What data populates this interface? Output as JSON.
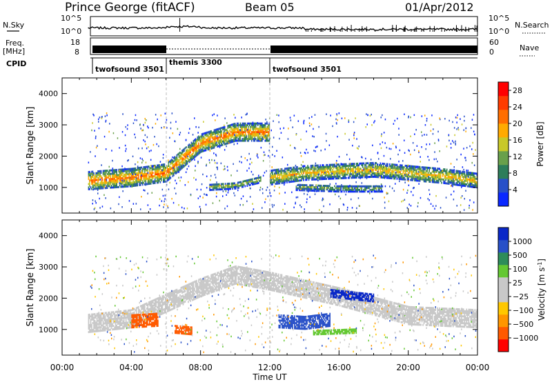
{
  "header": {
    "title": "Prince George (fitACF)",
    "beam": "Beam 05",
    "date": "01/Apr/2012"
  },
  "top_panels": {
    "nsky_label": "N.Sky",
    "nsearch_label": "N.Search",
    "nsky_ticks": [
      "10^5",
      "10^0"
    ],
    "nsearch_ticks": [
      "10^5",
      "10^0"
    ],
    "freq_label_1": "Freq.",
    "freq_label_2": "[MHz]",
    "freq_ticks": [
      "18",
      "8"
    ],
    "nave_label": "Nave",
    "nave_ticks": [
      "60",
      "0"
    ],
    "cpid_label": "CPID",
    "cpid_segments": [
      {
        "name": "twofsound 3501",
        "start_hr": 1.5,
        "end_hr": 6.0
      },
      {
        "name": "themis 3300",
        "start_hr": 6.0,
        "end_hr": 12.0
      },
      {
        "name": "twofsound 3501",
        "start_hr": 12.0,
        "end_hr": 24.0
      }
    ]
  },
  "colors": {
    "power_scale": [
      "#0a28ff",
      "#2850c8",
      "#2d7d5a",
      "#69a04b",
      "#c8c828",
      "#ffaa00",
      "#ff6e00",
      "#ff3c00",
      "#ff0000"
    ],
    "velocity_scale": [
      "#ff0000",
      "#ff5a00",
      "#ff9600",
      "#ffc800",
      "#c8c8c8",
      "#c8c8c8",
      "#64c832",
      "#2d8c5a",
      "#2850c8",
      "#0a28c8"
    ]
  },
  "chart_data": [
    {
      "type": "heatmap",
      "panel": "power",
      "xlabel": "",
      "ylabel": "Slant Range [km]",
      "xlim": [
        0,
        24
      ],
      "ylim": [
        180,
        4500
      ],
      "yticks": [
        "1000",
        "2000",
        "3000",
        "4000"
      ],
      "colorbar": {
        "label": "Power [dB]",
        "ticks": [
          "28",
          "24",
          "20",
          "16",
          "12",
          "8",
          "4"
        ],
        "range": [
          0,
          30
        ]
      },
      "features": [
        {
          "x": [
            1.5,
            4,
            6,
            8,
            10,
            12
          ],
          "y": [
            1250,
            1350,
            1500,
            2450,
            2800,
            2800
          ],
          "width_km": 550,
          "value_db": 22
        },
        {
          "x": [
            8.5,
            10,
            11.5
          ],
          "y": [
            1050,
            1100,
            1300
          ],
          "width_km": 200,
          "value_db": 14
        },
        {
          "x": [
            12,
            14,
            18,
            22,
            24
          ],
          "y": [
            1350,
            1500,
            1600,
            1400,
            1250
          ],
          "width_km": 450,
          "value_db": 18
        },
        {
          "x": [
            13.5,
            16,
            18.5
          ],
          "y": [
            1050,
            1000,
            1000
          ],
          "width_km": 200,
          "value_db": 12
        }
      ]
    },
    {
      "type": "heatmap",
      "panel": "velocity",
      "xlabel": "Time UT",
      "ylabel": "Slant Range [km]",
      "xlim": [
        0,
        24
      ],
      "ylim": [
        180,
        4500
      ],
      "yticks": [
        "1000",
        "2000",
        "3000",
        "4000"
      ],
      "xticks": [
        "00:00",
        "04:00",
        "08:00",
        "12:00",
        "16:00",
        "20:00",
        "00:00"
      ],
      "colorbar": {
        "label": "Velocity [m s",
        "label_superscript": "-1",
        "label_close": "]",
        "ticks": [
          "1000",
          "500",
          "100",
          "25",
          "−25",
          "−100",
          "−500",
          "−1000"
        ]
      },
      "features": [
        {
          "x": [
            1.5,
            4,
            8,
            10,
            12,
            16,
            20,
            24
          ],
          "y": [
            1250,
            1400,
            2400,
            2800,
            2600,
            2100,
            1500,
            1400
          ],
          "width_km": 600,
          "value": "-25 to 25"
        },
        {
          "x": [
            4,
            5.5
          ],
          "y": [
            1300,
            1350
          ],
          "width_km": 400,
          "value": "-500"
        },
        {
          "x": [
            6.5,
            7.5
          ],
          "y": [
            1050,
            1000
          ],
          "width_km": 250,
          "value": "-500"
        },
        {
          "x": [
            12.5,
            14,
            15.5
          ],
          "y": [
            1300,
            1250,
            1350
          ],
          "width_km": 400,
          "value": "500"
        },
        {
          "x": [
            14.5,
            17
          ],
          "y": [
            950,
            1000
          ],
          "width_km": 150,
          "value": "100"
        },
        {
          "x": [
            15.5,
            18
          ],
          "y": [
            2200,
            2050
          ],
          "width_km": 250,
          "value": "1000"
        }
      ]
    }
  ]
}
